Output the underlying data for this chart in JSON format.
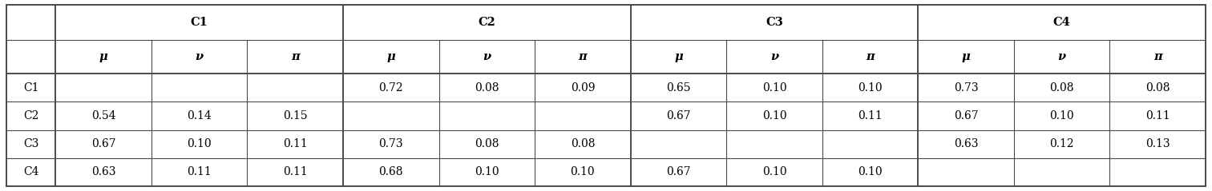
{
  "col_groups": [
    "C1",
    "C2",
    "C3",
    "C4"
  ],
  "sub_headers": [
    "μ",
    "ν",
    "π"
  ],
  "row_labels": [
    "C1",
    "C2",
    "C3",
    "C4"
  ],
  "table_data": [
    [
      [
        "",
        "",
        ""
      ],
      [
        "0.72",
        "0.08",
        "0.09"
      ],
      [
        "0.65",
        "0.10",
        "0.10"
      ],
      [
        "0.73",
        "0.08",
        "0.08"
      ]
    ],
    [
      [
        "0.54",
        "0.14",
        "0.15"
      ],
      [
        "",
        "",
        ""
      ],
      [
        "0.67",
        "0.10",
        "0.11"
      ],
      [
        "0.67",
        "0.10",
        "0.11"
      ]
    ],
    [
      [
        "0.67",
        "0.10",
        "0.11"
      ],
      [
        "0.73",
        "0.08",
        "0.08"
      ],
      [
        "",
        "",
        ""
      ],
      [
        "0.63",
        "0.12",
        "0.13"
      ]
    ],
    [
      [
        "0.63",
        "0.11",
        "0.11"
      ],
      [
        "0.68",
        "0.10",
        "0.10"
      ],
      [
        "0.67",
        "0.10",
        "0.10"
      ],
      [
        "",
        "",
        ""
      ]
    ]
  ],
  "background_color": "#ffffff",
  "line_color": "#4a4a4a",
  "text_color": "#000000",
  "group_header_fontsize": 10.5,
  "sub_header_fontsize": 10.5,
  "cell_fontsize": 10,
  "row_label_fontsize": 10,
  "fig_width": 15.12,
  "fig_height": 2.39,
  "dpi": 100
}
